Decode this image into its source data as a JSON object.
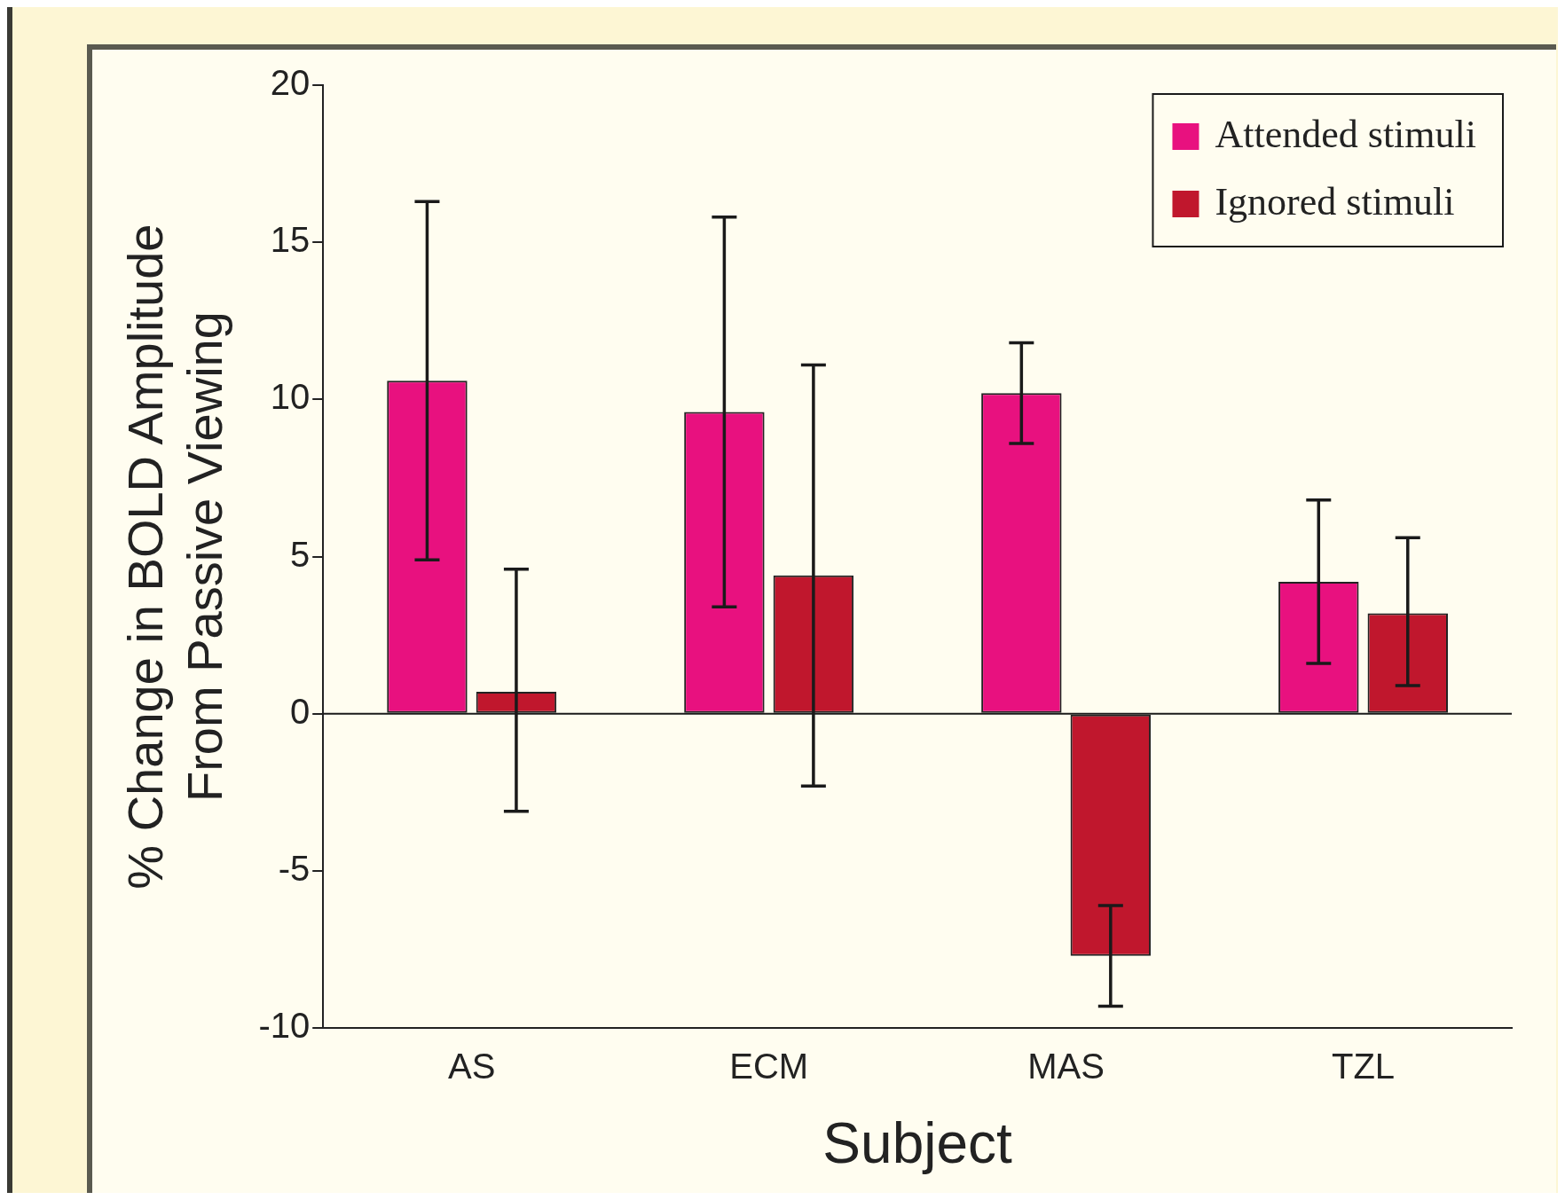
{
  "chart_data": {
    "type": "bar",
    "xlabel": "Subject",
    "ylabel": "% Change in BOLD Amplitude\nFrom Passive Viewing",
    "categories": [
      "AS",
      "ECM",
      "MAS",
      "TZL"
    ],
    "series": [
      {
        "name": "Attended stimuli",
        "color": "#e8117f",
        "values": [
          10.6,
          9.6,
          10.2,
          4.2
        ],
        "errors": [
          [
            4.9,
            16.3
          ],
          [
            3.4,
            15.8
          ],
          [
            8.6,
            11.8
          ],
          [
            1.6,
            6.8
          ]
        ]
      },
      {
        "name": "Ignored stimuli",
        "color": "#c0172d",
        "values": [
          0.7,
          4.4,
          -7.7,
          3.2
        ],
        "errors": [
          [
            -3.1,
            4.6
          ],
          [
            -2.3,
            11.1
          ],
          [
            -9.3,
            -6.1
          ],
          [
            0.9,
            5.6
          ]
        ]
      }
    ],
    "ylim": [
      -10,
      20
    ],
    "yticks": [
      -10,
      -5,
      0,
      5,
      10,
      15,
      20
    ],
    "grid": false,
    "ref_lines": [
      {
        "axis": "y",
        "value": 0,
        "color": "#1a1a1a"
      }
    ],
    "legend": "top right"
  }
}
